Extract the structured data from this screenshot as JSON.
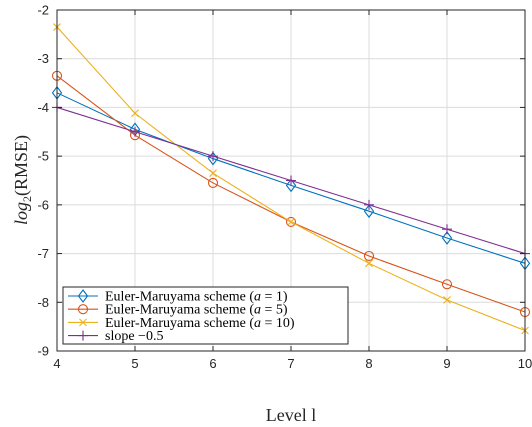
{
  "chart_data": {
    "type": "line",
    "xlabel": "Level l",
    "ylabel": "log2(RMSE)",
    "xlim": [
      4,
      10
    ],
    "ylim": [
      -9,
      -2
    ],
    "x_ticks": [
      "4",
      "5",
      "6",
      "7",
      "8",
      "9",
      "10"
    ],
    "y_ticks": [
      "-2",
      "-3",
      "-4",
      "-5",
      "-6",
      "-7",
      "-8",
      "-9"
    ],
    "grid": true,
    "legend_position": "bottom-left",
    "x": [
      4,
      5,
      6,
      7,
      8,
      9,
      10
    ],
    "series": [
      {
        "name": "Euler-Maruyama scheme (a = 1)",
        "color": "#0072BD",
        "marker": "diamond",
        "values": [
          -3.7,
          -4.45,
          -5.05,
          -5.6,
          -6.13,
          -6.68,
          -7.2
        ]
      },
      {
        "name": "Euler-Maruyama scheme (a = 5)",
        "color": "#D95319",
        "marker": "circle",
        "values": [
          -3.35,
          -4.57,
          -5.55,
          -6.35,
          -7.05,
          -7.63,
          -8.2
        ]
      },
      {
        "name": "Euler-Maruyama scheme (a = 10)",
        "color": "#EDB120",
        "marker": "x",
        "values": [
          -2.35,
          -4.12,
          -5.35,
          -6.35,
          -7.2,
          -7.95,
          -8.58
        ]
      },
      {
        "name": "slope −0.5",
        "color": "#7E2F8E",
        "marker": "plus",
        "values": [
          -4.0,
          -4.5,
          -5.0,
          -5.5,
          -6.0,
          -6.5,
          -7.0
        ]
      }
    ]
  }
}
